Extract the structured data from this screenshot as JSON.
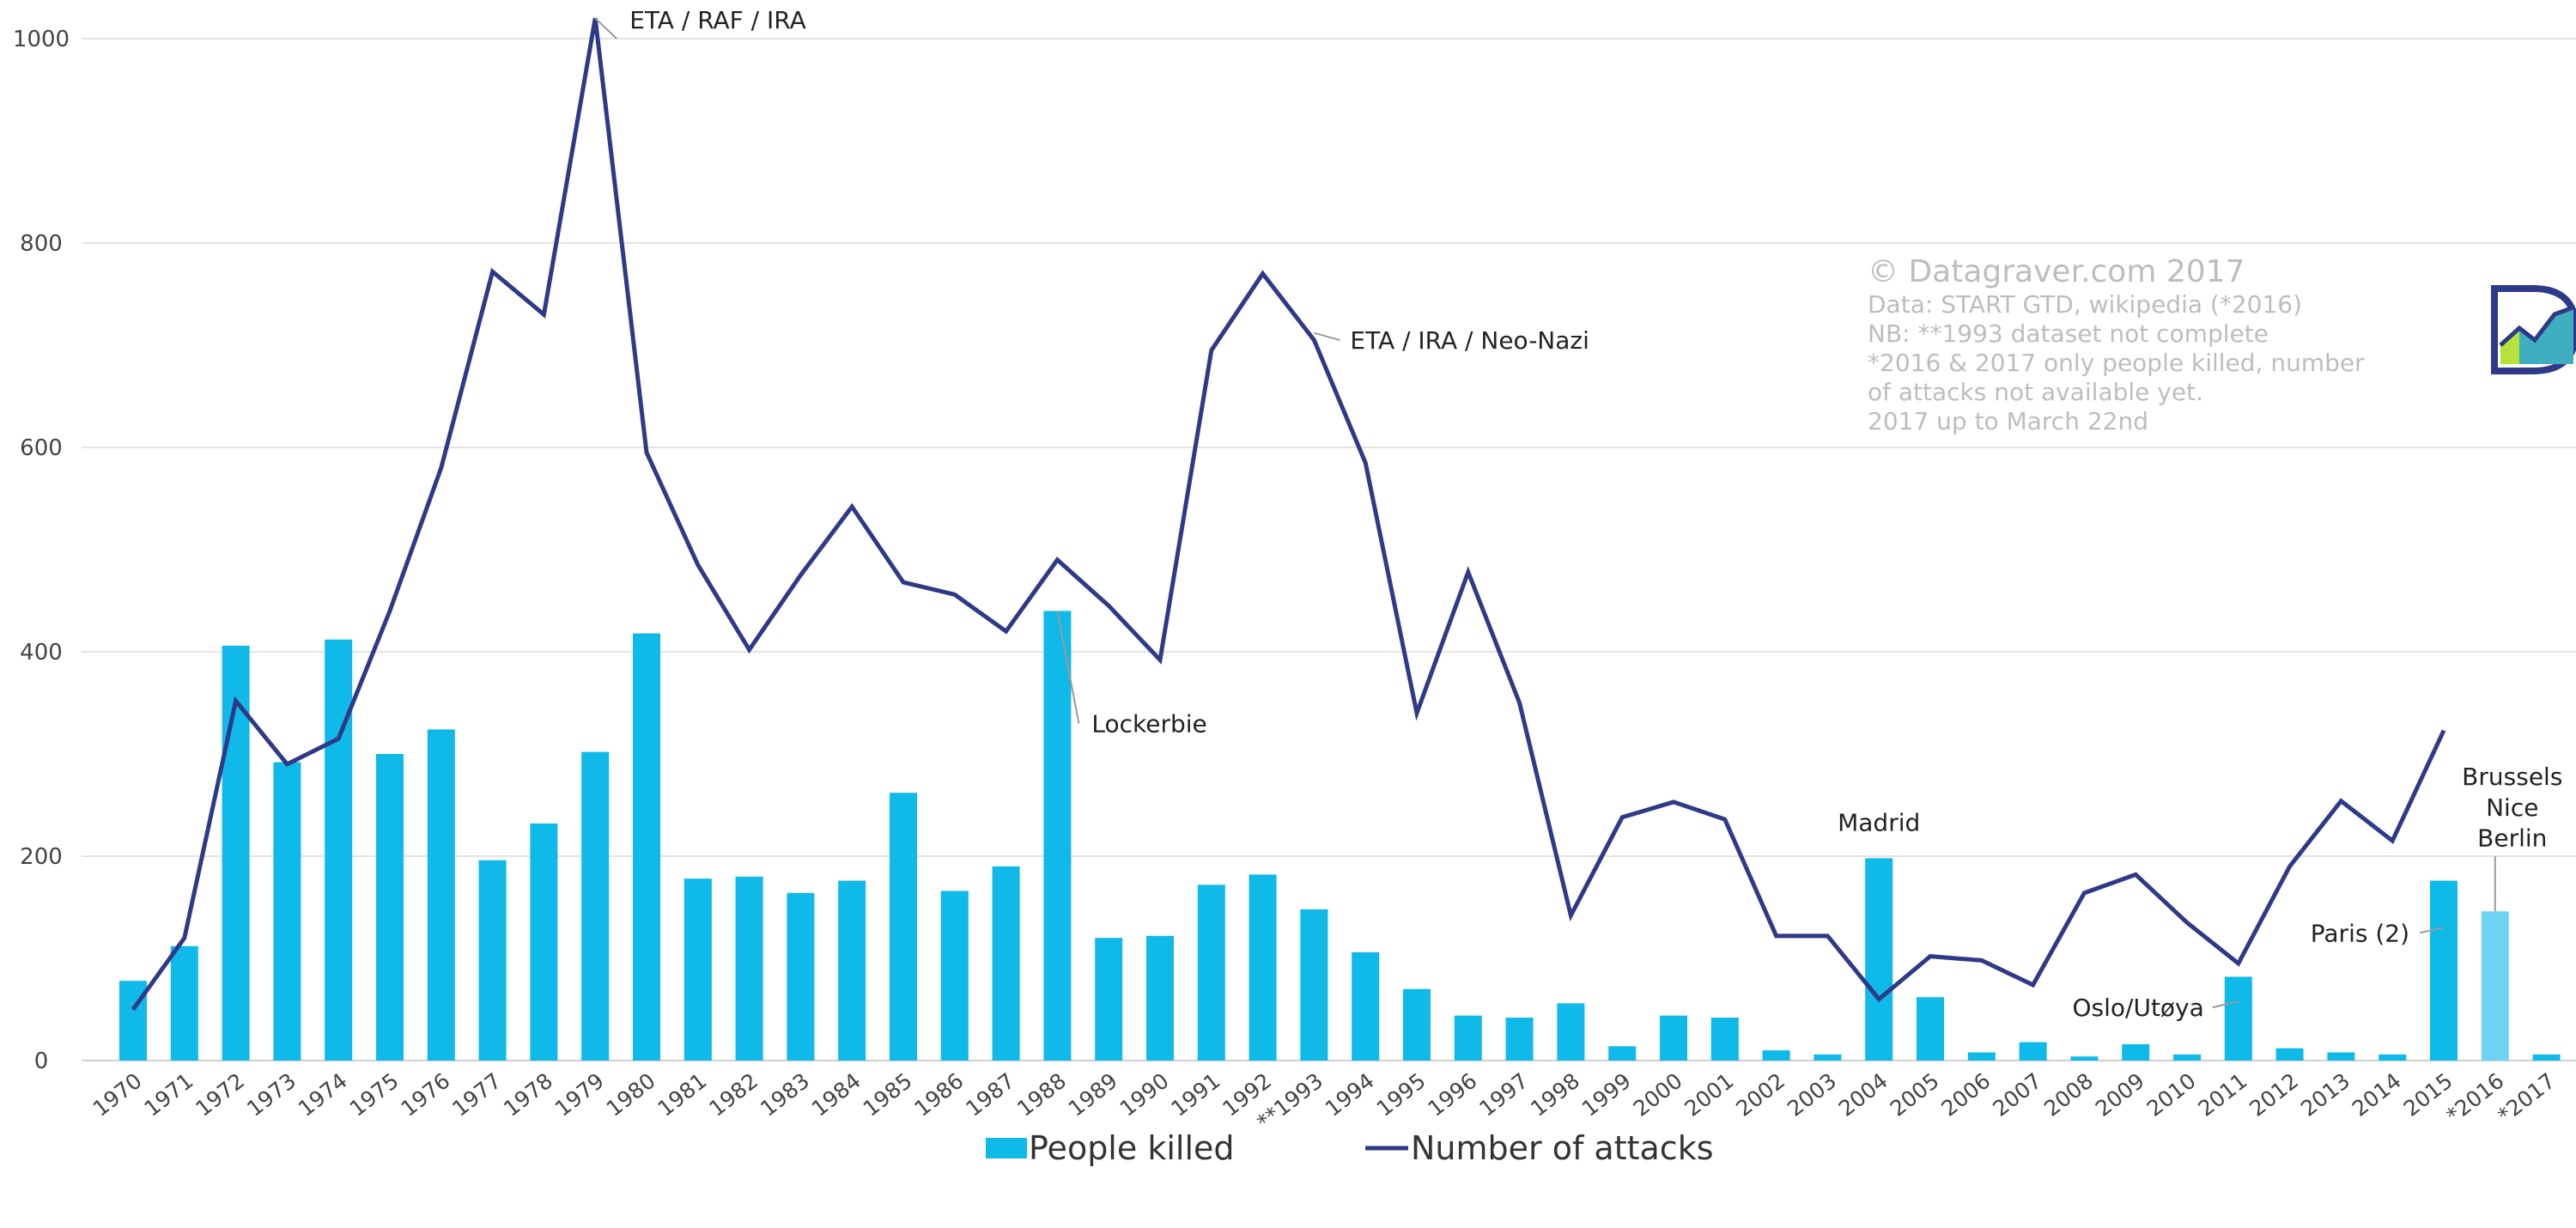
{
  "chart_data": {
    "type": "bar",
    "categories": [
      "1970",
      "1971",
      "1972",
      "1973",
      "1974",
      "1975",
      "1976",
      "1977",
      "1978",
      "1979",
      "1980",
      "1981",
      "1982",
      "1983",
      "1984",
      "1985",
      "1986",
      "1987",
      "1988",
      "1989",
      "1990",
      "1991",
      "1992",
      "**1993",
      "1994",
      "1995",
      "1996",
      "1997",
      "1998",
      "1999",
      "2000",
      "2001",
      "2002",
      "2003",
      "2004",
      "2005",
      "2006",
      "2007",
      "2008",
      "2009",
      "2010",
      "2011",
      "2012",
      "2013",
      "2014",
      "2015",
      "*2016",
      "*2017"
    ],
    "series": [
      {
        "name": "People killed",
        "kind": "bar",
        "color": "#0fb9e8",
        "highlight_color": "#6fd3f3",
        "values": [
          78,
          112,
          406,
          292,
          412,
          300,
          324,
          196,
          232,
          302,
          418,
          178,
          180,
          164,
          176,
          262,
          166,
          190,
          440,
          120,
          122,
          172,
          182,
          148,
          106,
          70,
          44,
          42,
          56,
          14,
          44,
          42,
          10,
          6,
          198,
          62,
          8,
          18,
          4,
          16,
          6,
          82,
          12,
          8,
          6,
          176,
          146,
          6
        ]
      },
      {
        "name": "Number of attacks",
        "kind": "line",
        "color": "#2e3a87",
        "values": [
          50,
          120,
          352,
          290,
          315,
          440,
          580,
          772,
          730,
          1020,
          595,
          485,
          402,
          475,
          542,
          468,
          456,
          420,
          490,
          445,
          392,
          695,
          770,
          705,
          585,
          340,
          478,
          350,
          142,
          238,
          253,
          236,
          122,
          122,
          60,
          102,
          98,
          74,
          164,
          182,
          135,
          95,
          190,
          254,
          215,
          323,
          null,
          null
        ]
      }
    ],
    "ylim": [
      0,
      1000
    ],
    "yticks": [
      0,
      200,
      400,
      600,
      800,
      1000
    ],
    "grid": "horizontal",
    "legend_position": "bottom",
    "annotations": [
      {
        "text": "ETA / RAF / IRA",
        "x": "1979",
        "value": 1020
      },
      {
        "text": "ETA / IRA / Neo-Nazi",
        "x": "**1993",
        "value": 705
      },
      {
        "text": "Lockerbie",
        "x": "1988",
        "value": 330
      },
      {
        "text": "Madrid",
        "x": "2004",
        "value": 198
      },
      {
        "text": "Oslo/Utøya",
        "x": "2011",
        "value": 52
      },
      {
        "text": "Paris (2)",
        "x": "2015",
        "value": 125
      },
      {
        "text": "Brussels",
        "x": "*2016",
        "value": 278
      },
      {
        "text": "Nice",
        "x": "*2016",
        "value": 248
      },
      {
        "text": "Berlin",
        "x": "*2016",
        "value": 218
      }
    ],
    "credits": [
      "© Datagraver.com 2017",
      "Data: START GTD, wikipedia (*2016)",
      "NB: **1993 dataset not complete",
      "*2016 & 2017  only people killed, number",
      "of attacks not available yet.",
      "2017 up to March 22nd"
    ]
  }
}
